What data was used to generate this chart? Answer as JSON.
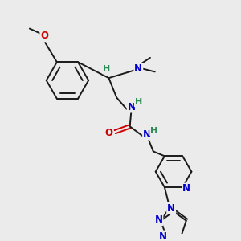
{
  "background_color": "#ebebeb",
  "bond_color": "#1a1a1a",
  "nitrogen_color": "#0000cc",
  "oxygen_color": "#cc0000",
  "hydrogen_color": "#2e8b57",
  "figsize": [
    3.0,
    3.0
  ],
  "dpi": 100,
  "xlim": [
    0,
    300
  ],
  "ylim": [
    0,
    300
  ]
}
